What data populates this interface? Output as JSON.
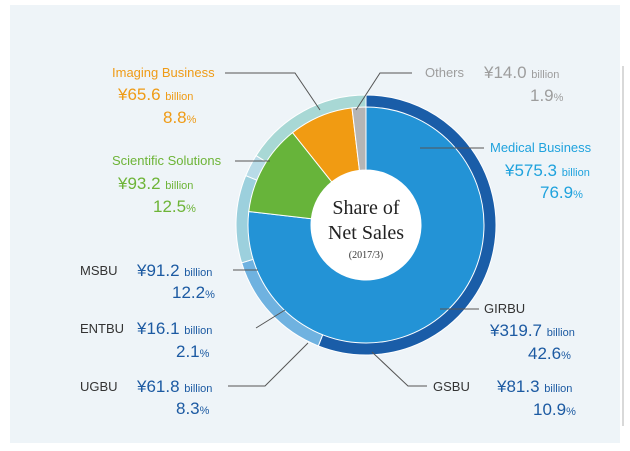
{
  "chart_data": {
    "type": "pie",
    "title": "Share of Net Sales",
    "subtitle": "(2017/3)",
    "unit_word": "billion",
    "inner_ring": [
      {
        "name": "Medical Business",
        "amount": "¥575.3",
        "percent": "76.9",
        "value": 76.9,
        "color": "#2393d6"
      },
      {
        "name": "Scientific Solutions",
        "amount": "¥93.2",
        "percent": "12.5",
        "value": 12.5,
        "color": "#67b43a"
      },
      {
        "name": "Imaging Business",
        "amount": "¥65.6",
        "percent": "8.8",
        "value": 8.8,
        "color": "#f19b12"
      },
      {
        "name": "Others",
        "amount": "¥14.0",
        "percent": "1.9",
        "value": 1.9,
        "color": "#b5b5b5"
      }
    ],
    "outer_ring": [
      {
        "name": "GIRBU",
        "amount": "¥319.7",
        "percent": "42.6",
        "value": 42.6,
        "color": "#1a5da8"
      },
      {
        "name": "GSBU",
        "amount": "¥81.3",
        "percent": "10.9",
        "value": 10.9,
        "color": "#6fb2e0"
      },
      {
        "name": "UGBU",
        "amount": "¥61.8",
        "percent": "8.3",
        "value": 8.3,
        "color": "#9cd0dd"
      },
      {
        "name": "ENTBU",
        "amount": "¥16.1",
        "percent": "2.1",
        "value": 2.1,
        "color": "#b8dbe7"
      },
      {
        "name": "MSBU",
        "amount": "¥91.2",
        "percent": "12.2",
        "value": 12.2,
        "color": "#a8d8d5"
      }
    ],
    "grid": false,
    "legend": "none"
  },
  "colors": {
    "imaging_text": "#ef9b16",
    "scientific_text": "#6db437",
    "medical_text": "#1fa2dd",
    "others_text": "#9d9d9d",
    "business_unit_text": "#1c5aa2"
  }
}
